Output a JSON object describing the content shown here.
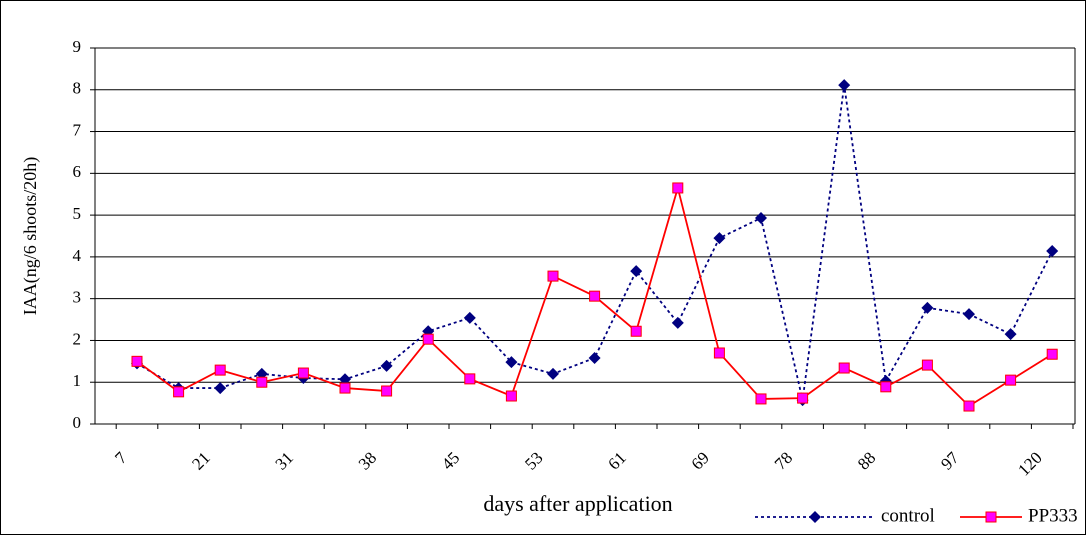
{
  "chart_data": {
    "type": "line",
    "y_label": "IAA(ng/6 shoots/20h)",
    "x_label": "days after application",
    "categories": [
      "7",
      null,
      "21",
      null,
      "31",
      null,
      "38",
      null,
      "45",
      null,
      "53",
      null,
      "61",
      null,
      "69",
      null,
      "78",
      null,
      "88",
      null,
      "97",
      null,
      "120"
    ],
    "series": [
      {
        "name": "control",
        "color": "#000080",
        "line_style": "dotted",
        "marker": "diamond",
        "values": [
          1.45,
          0.86,
          0.86,
          1.2,
          1.1,
          1.07,
          1.39,
          2.22,
          2.54,
          1.48,
          1.2,
          1.58,
          3.66,
          2.42,
          4.45,
          4.93,
          0.57,
          8.11,
          1.03,
          2.78,
          2.63,
          2.15,
          4.14
        ]
      },
      {
        "name": "PP333",
        "color": "#ff0000",
        "marker_fill": "#ff00ff",
        "line_style": "solid",
        "marker": "square",
        "values": [
          1.5,
          0.77,
          1.29,
          1.0,
          1.22,
          0.86,
          0.79,
          2.03,
          1.08,
          0.67,
          3.54,
          3.06,
          2.22,
          5.65,
          1.7,
          0.6,
          0.62,
          1.34,
          0.89,
          1.41,
          0.43,
          1.05,
          1.67
        ]
      }
    ],
    "ylim": [
      0,
      9
    ],
    "yticks": [
      0,
      1,
      2,
      3,
      4,
      5,
      6,
      7,
      8,
      9
    ],
    "grid": true,
    "legend": "bottom-right"
  }
}
